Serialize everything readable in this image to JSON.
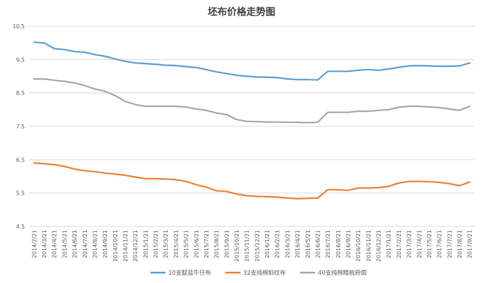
{
  "chart_data": {
    "type": "line",
    "title": "坯布价格走势图",
    "xlabel": "",
    "ylabel": "",
    "ylim": [
      4.5,
      10.5
    ],
    "yticks": [
      "4.5",
      "5.5",
      "6.5",
      "7.5",
      "8.5",
      "9.5",
      "10.5"
    ],
    "ytick_values": [
      4.5,
      5.5,
      6.5,
      7.5,
      8.5,
      9.5,
      10.5
    ],
    "grid": "horizontal",
    "legend_position": "bottom",
    "categories": [
      "2014/2/21",
      "2014/3/21",
      "2014/4/21",
      "2014/5/21",
      "2014/6/21",
      "2014/7/21",
      "2014/8/21",
      "2014/9/21",
      "2014/10/21",
      "2014/11/21",
      "2014/12/21",
      "2015/1/21",
      "2015/2/21",
      "2015/3/21",
      "2015/4/21",
      "2015/5/21",
      "2015/6/21",
      "2015/7/21",
      "2015/8/21",
      "2015/9/21",
      "2015/10/21",
      "2015/11/21",
      "2015/12/21",
      "2016/1/21",
      "2016/2/21",
      "2016/3/21",
      "2016/4/21",
      "2016/5/21",
      "2016/6/21",
      "2016/7/21",
      "2016/8/21",
      "2016/9/21",
      "2016/10/21",
      "2016/11/21",
      "2016/12/21",
      "2017/1/21",
      "2017/2/21",
      "2017/3/21",
      "2017/4/21",
      "2017/5/21",
      "2017/6/21",
      "2017/7/21",
      "2017/8/21",
      "2017/9/21"
    ],
    "series": [
      {
        "name": "10支靛蓝牛仔布",
        "color": "#5B9BD5",
        "values": [
          10.02,
          10.0,
          9.83,
          9.8,
          9.74,
          9.72,
          9.65,
          9.6,
          9.52,
          9.45,
          9.4,
          9.38,
          9.36,
          9.33,
          9.32,
          9.29,
          9.26,
          9.2,
          9.13,
          9.08,
          9.03,
          9.0,
          8.98,
          8.97,
          8.96,
          8.92,
          8.9,
          8.9,
          8.89,
          9.15,
          9.15,
          9.15,
          9.18,
          9.2,
          9.18,
          9.22,
          9.27,
          9.31,
          9.32,
          9.31,
          9.3,
          9.3,
          9.31,
          9.4
        ]
      },
      {
        "name": "32支纯棉斜纹布",
        "color": "#ED7D31",
        "values": [
          6.4,
          6.38,
          6.35,
          6.3,
          6.22,
          6.17,
          6.14,
          6.1,
          6.07,
          6.03,
          5.98,
          5.93,
          5.93,
          5.92,
          5.9,
          5.85,
          5.75,
          5.68,
          5.57,
          5.55,
          5.47,
          5.42,
          5.4,
          5.39,
          5.38,
          5.35,
          5.33,
          5.34,
          5.35,
          5.6,
          5.6,
          5.58,
          5.65,
          5.65,
          5.66,
          5.7,
          5.8,
          5.85,
          5.85,
          5.84,
          5.82,
          5.78,
          5.72,
          5.83
        ]
      },
      {
        "name": "40支纯棉精梳府绸",
        "color": "#A5A5A5",
        "values": [
          8.92,
          8.92,
          8.88,
          8.85,
          8.8,
          8.72,
          8.62,
          8.55,
          8.42,
          8.25,
          8.15,
          8.1,
          8.1,
          8.1,
          8.1,
          8.08,
          8.02,
          7.98,
          7.9,
          7.85,
          7.7,
          7.65,
          7.64,
          7.63,
          7.63,
          7.62,
          7.62,
          7.61,
          7.62,
          7.92,
          7.92,
          7.92,
          7.95,
          7.95,
          7.98,
          8.0,
          8.07,
          8.1,
          8.1,
          8.08,
          8.06,
          8.02,
          7.98,
          8.1
        ]
      }
    ]
  }
}
